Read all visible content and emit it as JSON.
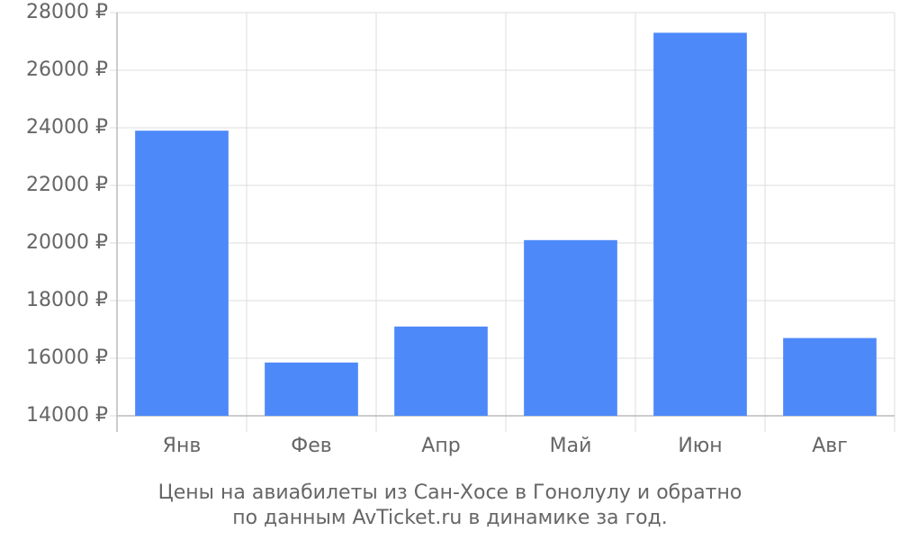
{
  "chart_data": {
    "type": "bar",
    "title": [
      "Цены на авиабилеты из Сан-Хосе в Гонолулу и обратно",
      "по данным AvTicket.ru в динамике за год."
    ],
    "categories": [
      "Янв",
      "Фев",
      "Апр",
      "Май",
      "Июн",
      "Авг"
    ],
    "values": [
      23900,
      15850,
      17100,
      20100,
      27300,
      16700
    ],
    "color": "#4d89f9",
    "ylim": [
      14000,
      28000
    ],
    "yticks": [
      {
        "value": 14000,
        "label": "14000 ₽"
      },
      {
        "value": 16000,
        "label": "16000 ₽"
      },
      {
        "value": 18000,
        "label": "18000 ₽"
      },
      {
        "value": 20000,
        "label": "20000 ₽"
      },
      {
        "value": 22000,
        "label": "22000 ₽"
      },
      {
        "value": 24000,
        "label": "24000 ₽"
      },
      {
        "value": 26000,
        "label": "26000 ₽"
      },
      {
        "value": 28000,
        "label": "28000 ₽"
      }
    ],
    "grid": true
  }
}
